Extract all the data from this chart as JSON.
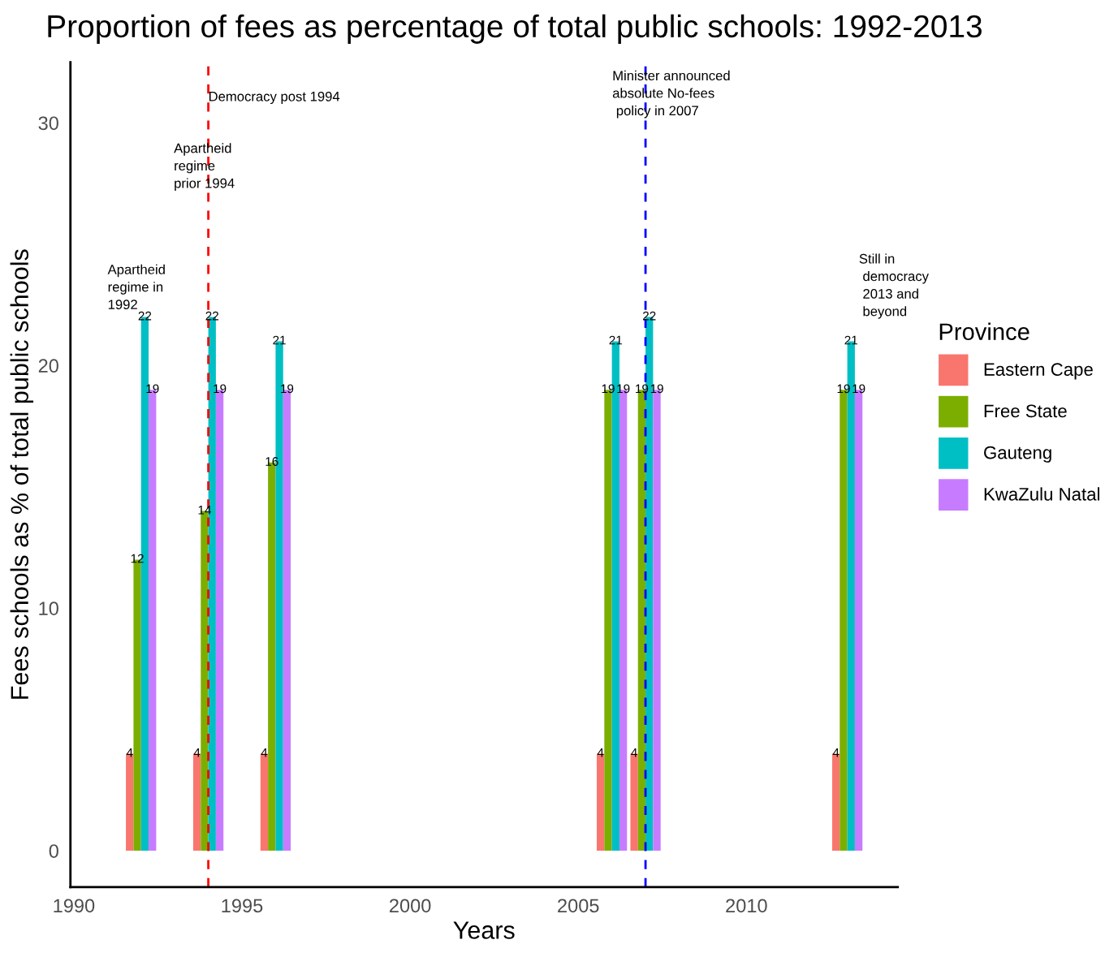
{
  "chart_data": {
    "type": "bar",
    "title": "Proportion of fees as percentage of total public schools: 1992-2013",
    "xlabel": "Years",
    "ylabel": "Fees schools as % of total public schools",
    "x": [
      1992,
      1994,
      1996,
      2006,
      2007,
      2013
    ],
    "series": [
      {
        "name": "Eastern Cape",
        "color": "#f8766d",
        "values": [
          4,
          4,
          4,
          4,
          4,
          4
        ]
      },
      {
        "name": "Free State",
        "color": "#7cae00",
        "values": [
          12,
          14,
          16,
          19,
          19,
          19
        ]
      },
      {
        "name": "Gauteng",
        "color": "#00bfc4",
        "values": [
          22,
          22,
          21,
          21,
          22,
          21
        ]
      },
      {
        "name": "KwaZulu Natal",
        "color": "#c77cff",
        "values": [
          19,
          19,
          19,
          19,
          19,
          19
        ]
      }
    ],
    "data_labels": true,
    "legend": "right",
    "legend_title": "Province",
    "xlim": [
      1989.9,
      2014.5
    ],
    "xticks": [
      1990,
      1995,
      2000,
      2005,
      2010
    ],
    "ylim": [
      -1.5,
      32.5
    ],
    "yticks": [
      0,
      10,
      20,
      30
    ],
    "grid": false,
    "ref_lines": [
      {
        "axis": "x",
        "value": 1994,
        "color": "#ff0000",
        "line_style": "dashed"
      },
      {
        "axis": "x",
        "value": 2007,
        "color": "#0000ff",
        "line_style": "dashed"
      }
    ],
    "annotations": [
      "Apartheid\nregime in\n1992",
      "Apartheid\nregime\nprior 1994",
      {
        "text": "Democracy post 1994",
        "x": 1994,
        "y": 31.3
      },
      "Minister announced\nabsolute No-fees\n policy in 2007",
      "Still in\n democracy\n 2013 and\n beyond"
    ]
  }
}
